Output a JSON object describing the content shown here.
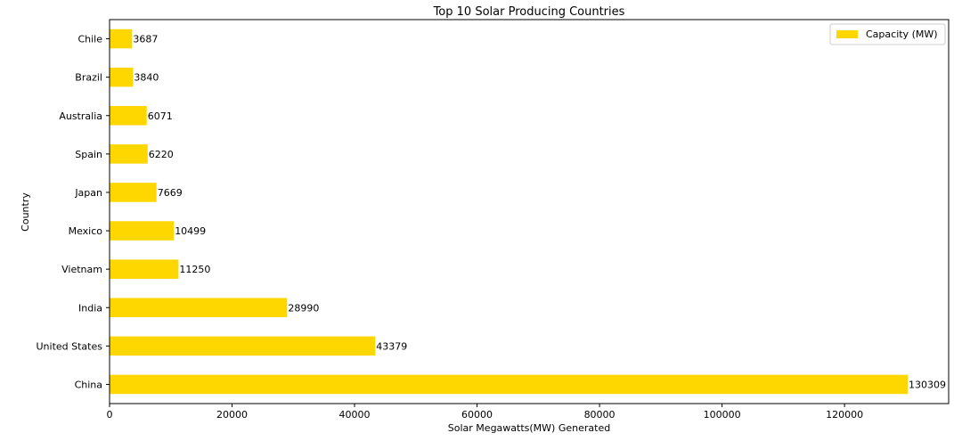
{
  "chart_data": {
    "type": "bar",
    "orientation": "horizontal",
    "title": "Top 10 Solar Producing Countries",
    "xlabel": "Solar Megawatts(MW) Generated",
    "ylabel": "Country",
    "xlim": [
      0,
      137000
    ],
    "xticks": [
      0,
      20000,
      40000,
      60000,
      80000,
      100000,
      120000
    ],
    "categories": [
      "China",
      "United States",
      "India",
      "Vietnam",
      "Mexico",
      "Japan",
      "Spain",
      "Australia",
      "Brazil",
      "Chile"
    ],
    "series": [
      {
        "name": "Capacity (MW)",
        "values": [
          130309,
          43379,
          28990,
          11250,
          10499,
          7669,
          6220,
          6071,
          3840,
          3687
        ],
        "color": "#FFD700"
      }
    ],
    "legend": "top-right",
    "grid": false
  }
}
